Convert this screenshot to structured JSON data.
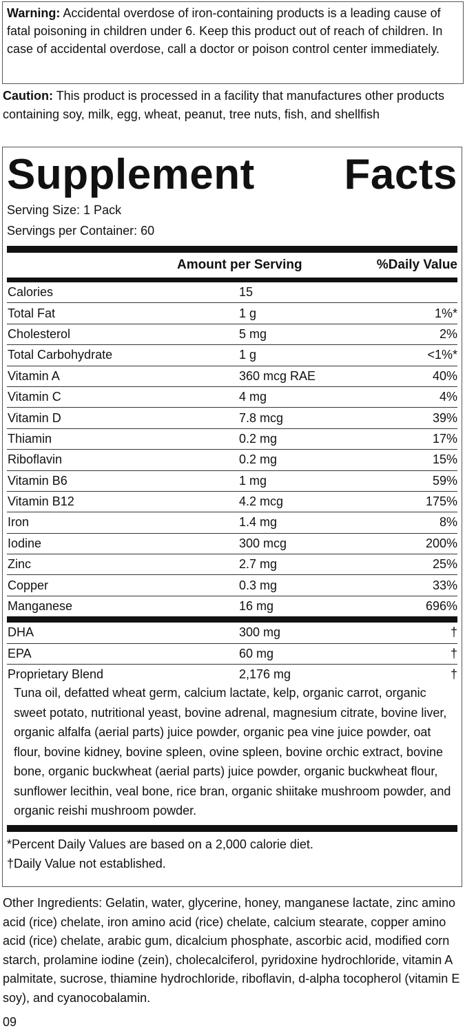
{
  "warning": {
    "label": "Warning:",
    "text": "Accidental overdose of iron-containing products is a leading cause of fatal poisoning in children under 6. Keep this product out of reach of children. In case of accidental overdose, call a doctor or poison control center immediately."
  },
  "caution": {
    "label": "Caution:",
    "text": "This product is processed in a facility that manufactures other products containing soy, milk, egg, wheat, peanut, tree nuts, fish, and shellfish"
  },
  "facts": {
    "title_left": "Supplement",
    "title_right": "Facts",
    "serving_size": "Serving Size: 1 Pack",
    "servings_per_container": "Servings per Container: 60",
    "columns": [
      "Amount per Serving",
      "%Daily Value"
    ],
    "rows": [
      [
        "Calories",
        "15"
      ],
      [
        "Total Fat",
        "1 g",
        "1%*"
      ],
      [
        "Cholesterol",
        "5 mg",
        "2%"
      ],
      [
        "Total Carbohydrate",
        "1 g",
        "<1%*"
      ],
      [
        "Vitamin A",
        "360 mcg RAE",
        "40%"
      ],
      [
        "Vitamin C",
        "4 mg",
        "4%"
      ],
      [
        "Vitamin D",
        "7.8 mcg",
        "39%"
      ],
      [
        "Thiamin",
        "0.2 mg",
        "17%"
      ],
      [
        "Riboflavin",
        "0.2 mg",
        "15%"
      ],
      [
        "Vitamin B6",
        "1 mg",
        "59%"
      ],
      [
        "Vitamin B12",
        "4.2 mcg",
        "175%"
      ],
      [
        "Iron",
        "1.4 mg",
        "8%"
      ],
      [
        "Iodine",
        "300 mcg",
        "200%"
      ],
      [
        "Zinc",
        "2.7 mg",
        "25%"
      ],
      [
        "Copper",
        "0.3 mg",
        "33%"
      ],
      [
        "Manganese",
        "16 mg",
        "696%"
      ]
    ],
    "other_rows": [
      [
        "DHA",
        "300 mg",
        "†"
      ],
      [
        "EPA",
        "60 mg",
        "†"
      ],
      [
        "Proprietary Blend",
        "2,176 mg",
        "†"
      ]
    ],
    "blend_ingredients": "Tuna oil, defatted wheat germ, calcium lactate, kelp, organic carrot, organic sweet potato, nutritional yeast, bovine adrenal, magnesium citrate, bovine liver, organic alfalfa (aerial parts) juice powder, organic pea vine juice powder, oat flour, bovine kidney, bovine spleen, ovine spleen, bovine orchic extract, bovine bone, organic buckwheat (aerial parts) juice powder, organic buckwheat flour, sunflower lecithin, veal bone, rice bran, organic shiitake mushroom powder, and organic reishi mushroom powder.",
    "footnotes": [
      "*Percent Daily Values are based on a 2,000 calorie diet.",
      "†Daily Value not established."
    ]
  },
  "other_ingredients": "Other Ingredients: Gelatin, water, glycerine, honey, manganese lactate, zinc amino acid (rice) chelate, iron amino acid (rice) chelate, calcium stearate, copper amino acid (rice) chelate, arabic gum, dicalcium phosphate, ascorbic acid, modified corn starch, prolamine iodine (zein), cholecalciferol, pyridoxine hydrochloride, vitamin A palmitate, sucrose, thiamine hydrochloride, riboflavin, d-alpha tocopherol (vitamin E soy), and cyanocobalamin.",
  "code": "09"
}
